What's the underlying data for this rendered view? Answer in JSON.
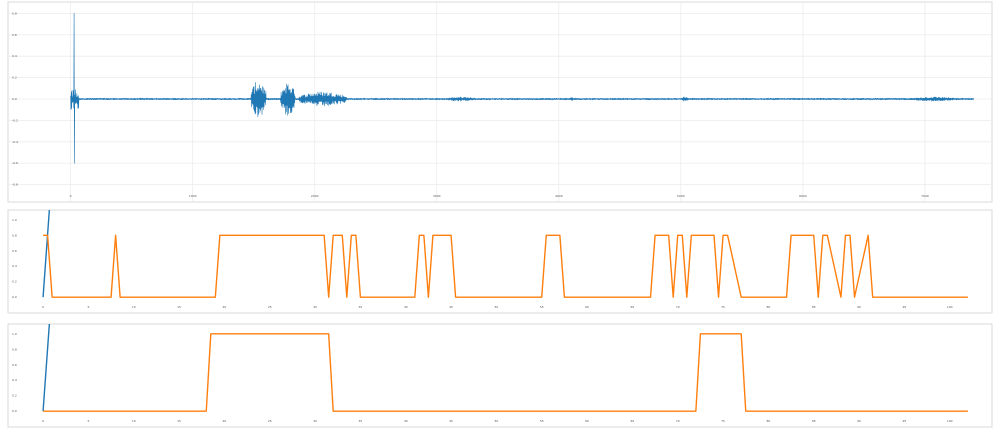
{
  "colors": {
    "series_blue": "#1f77b4",
    "series_orange": "#ff7f0e",
    "grid": "#ececec",
    "frame": "#d9d9d9"
  },
  "chart_data": [
    {
      "type": "line",
      "title": "",
      "xlabel": "",
      "ylabel": "",
      "grid": true,
      "xlim": [
        -300,
        7500
      ],
      "ylim": [
        -0.85,
        0.85
      ],
      "xticks": [
        0,
        1000,
        2000,
        3000,
        4000,
        5000,
        6000,
        7000
      ],
      "xtick_labels": [
        "0",
        "1000",
        "2000",
        "3000",
        "4000",
        "5000",
        "6000",
        "7000"
      ],
      "yticks": [
        -0.8,
        -0.6,
        -0.4,
        -0.2,
        0.0,
        0.2,
        0.4,
        0.6,
        0.8
      ],
      "ytick_labels": [
        "-0.8",
        "-0.6",
        "-0.4",
        "-0.2",
        "0.0",
        "0.2",
        "0.4",
        "0.6",
        "0.8"
      ],
      "series": [
        {
          "color": "#1f77b4",
          "style": "waveform",
          "x_end": 7400,
          "baseline_noise": 0.008,
          "spike_x": 30,
          "spike_max": 0.8,
          "spike_min": -0.6,
          "bursts": [
            {
              "x_start": 1480,
              "x_end": 1600,
              "amplitude": 0.18
            },
            {
              "x_start": 1720,
              "x_end": 1840,
              "amplitude": 0.16
            },
            {
              "x_start": 1870,
              "x_end": 2260,
              "amplitude": 0.07
            },
            {
              "x_start": 3080,
              "x_end": 3320,
              "amplitude": 0.02
            },
            {
              "x_start": 4080,
              "x_end": 4150,
              "amplitude": 0.015
            },
            {
              "x_start": 5000,
              "x_end": 5060,
              "amplitude": 0.02
            },
            {
              "x_start": 6900,
              "x_end": 7250,
              "amplitude": 0.02
            }
          ]
        }
      ]
    },
    {
      "type": "line",
      "title": "",
      "xlabel": "",
      "ylabel": "",
      "grid": false,
      "xlim": [
        -1,
        104
      ],
      "ylim": [
        -0.05,
        1.05
      ],
      "xticks": [
        0,
        5,
        10,
        15,
        20,
        25,
        30,
        35,
        40,
        45,
        50,
        55,
        60,
        65,
        70,
        75,
        80,
        85,
        90,
        95,
        100
      ],
      "xtick_labels": [
        "0",
        "5",
        "10",
        "15",
        "20",
        "25",
        "30",
        "35",
        "40",
        "45",
        "50",
        "55",
        "60",
        "65",
        "70",
        "75",
        "80",
        "85",
        "90",
        "95",
        "100"
      ],
      "yticks": [
        0.0,
        0.2,
        0.4,
        0.6,
        0.8,
        1.0
      ],
      "ytick_labels": [
        "0.0",
        "0.2",
        "0.4",
        "0.6",
        "0.8",
        "1.0"
      ],
      "series": [
        {
          "color": "#1f77b4",
          "x": [
            0,
            0.8
          ],
          "y": [
            0,
            1.3
          ]
        },
        {
          "color": "#ff7f0e",
          "x": [
            0,
            0.5,
            1,
            7.5,
            8,
            8.5,
            19,
            19.5,
            31,
            31.5,
            32,
            33,
            33.5,
            34,
            34.5,
            35,
            41,
            41.5,
            42,
            42.5,
            43,
            45,
            45.5,
            55,
            55.5,
            57,
            57.5,
            67,
            67.5,
            69,
            69.5,
            70,
            70.5,
            71,
            71.5,
            74,
            74.5,
            75,
            75.5,
            77,
            77.5,
            82,
            82.5,
            85,
            85.5,
            86,
            86.5,
            88,
            88.5,
            89,
            89.5,
            91,
            91.5,
            102
          ],
          "y": [
            0.8,
            0.8,
            0,
            0,
            0.8,
            0,
            0,
            0.8,
            0.8,
            0,
            0.8,
            0.8,
            0,
            0.8,
            0.8,
            0,
            0,
            0.8,
            0.8,
            0,
            0.8,
            0.8,
            0,
            0,
            0.8,
            0.8,
            0,
            0,
            0.8,
            0.8,
            0,
            0.8,
            0.8,
            0,
            0.8,
            0.8,
            0,
            0.8,
            0.8,
            0,
            0,
            0,
            0.8,
            0.8,
            0,
            0.8,
            0.8,
            0,
            0.8,
            0.8,
            0,
            0.8,
            0,
            0
          ]
        }
      ]
    },
    {
      "type": "line",
      "title": "",
      "xlabel": "",
      "ylabel": "",
      "grid": false,
      "xlim": [
        -1,
        104
      ],
      "ylim": [
        -0.05,
        1.05
      ],
      "xticks": [
        0,
        5,
        10,
        15,
        20,
        25,
        30,
        35,
        40,
        45,
        50,
        55,
        60,
        65,
        70,
        75,
        80,
        85,
        90,
        95,
        100
      ],
      "xtick_labels": [
        "0",
        "5",
        "10",
        "15",
        "20",
        "25",
        "30",
        "35",
        "40",
        "45",
        "50",
        "55",
        "60",
        "65",
        "70",
        "75",
        "80",
        "85",
        "90",
        "95",
        "100"
      ],
      "yticks": [
        0.0,
        0.2,
        0.4,
        0.6,
        0.8,
        1.0
      ],
      "ytick_labels": [
        "0.0",
        "0.2",
        "0.4",
        "0.6",
        "0.8",
        "1.0"
      ],
      "series": [
        {
          "color": "#1f77b4",
          "x": [
            0,
            0.8
          ],
          "y": [
            0,
            1.3
          ]
        },
        {
          "color": "#ff7f0e",
          "x": [
            0,
            18,
            18.5,
            31.5,
            32,
            72,
            72.5,
            77,
            77.5,
            102
          ],
          "y": [
            0,
            0,
            1,
            1,
            0,
            0,
            1,
            1,
            0,
            0
          ]
        }
      ]
    }
  ]
}
